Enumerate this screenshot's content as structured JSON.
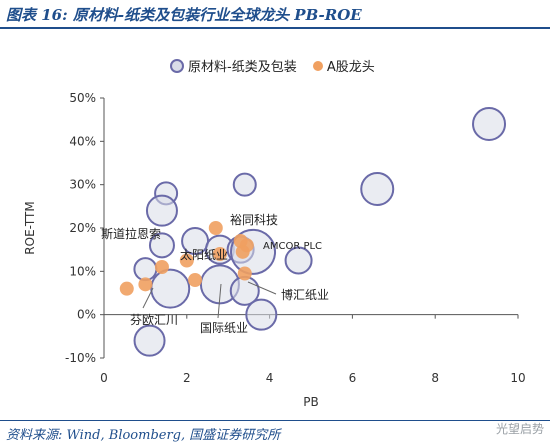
{
  "header": {
    "title": "图表 16:  原材料-纸类及包装行业全球龙头 PB-ROE"
  },
  "footer": {
    "source": "资料来源:  Wind,  Bloomberg,  国盛证券研究所",
    "watermark": "光望启势"
  },
  "colors": {
    "accent": "#1f4e8c",
    "bubble_fill": "#d9dce8",
    "bubble_stroke": "#6a6aa8",
    "a_share": "#f0a060"
  },
  "chart_data": {
    "type": "scatter",
    "xlabel": "PB",
    "ylabel": "ROE-TTM",
    "xlim": [
      0,
      10
    ],
    "ylim": [
      -10,
      50
    ],
    "x_ticks": [
      "0",
      "2",
      "4",
      "6",
      "8",
      "10"
    ],
    "y_ticks": [
      "-10%",
      "0%",
      "10%",
      "20%",
      "30%",
      "40%",
      "50%"
    ],
    "legend": {
      "position": "top-center",
      "entries": [
        "原材料-纸类及包装",
        "A股龙头"
      ]
    },
    "series": [
      {
        "name": "原材料-纸类及包装",
        "marker": "bubble",
        "points": [
          {
            "x": 9.3,
            "y": 44,
            "size": 16
          },
          {
            "x": 6.6,
            "y": 29,
            "size": 16
          },
          {
            "x": 3.4,
            "y": 30,
            "size": 11
          },
          {
            "x": 1.5,
            "y": 28,
            "size": 11
          },
          {
            "x": 1.4,
            "y": 24,
            "size": 15
          },
          {
            "x": 1.4,
            "y": 16,
            "size": 12
          },
          {
            "x": 2.2,
            "y": 17,
            "size": 13
          },
          {
            "x": 2.8,
            "y": 15,
            "size": 14
          },
          {
            "x": 3.3,
            "y": 15,
            "size": 13
          },
          {
            "x": 3.6,
            "y": 14.5,
            "size": 22
          },
          {
            "x": 4.7,
            "y": 12.5,
            "size": 13
          },
          {
            "x": 1.0,
            "y": 10.5,
            "size": 11
          },
          {
            "x": 1.6,
            "y": 6,
            "size": 19
          },
          {
            "x": 2.8,
            "y": 7,
            "size": 19
          },
          {
            "x": 3.4,
            "y": 5.5,
            "size": 14
          },
          {
            "x": 3.8,
            "y": 0,
            "size": 15
          },
          {
            "x": 1.1,
            "y": -6,
            "size": 15
          }
        ]
      },
      {
        "name": "A股龙头",
        "marker": "dot",
        "points": [
          {
            "x": 0.55,
            "y": 6
          },
          {
            "x": 1.0,
            "y": 7
          },
          {
            "x": 1.4,
            "y": 11
          },
          {
            "x": 2.0,
            "y": 12.5
          },
          {
            "x": 2.2,
            "y": 8
          },
          {
            "x": 2.7,
            "y": 20
          },
          {
            "x": 2.8,
            "y": 14
          },
          {
            "x": 3.3,
            "y": 17
          },
          {
            "x": 3.35,
            "y": 14.5
          },
          {
            "x": 3.45,
            "y": 16
          },
          {
            "x": 3.4,
            "y": 9.5
          }
        ]
      }
    ],
    "annotations": [
      {
        "text": "裕同科技"
      },
      {
        "text": "斯道拉恩索"
      },
      {
        "text": "太阳纸业"
      },
      {
        "text": "AMCOR PLC"
      },
      {
        "text": "博汇纸业"
      },
      {
        "text": "芬欧汇川"
      },
      {
        "text": "国际纸业"
      }
    ]
  }
}
